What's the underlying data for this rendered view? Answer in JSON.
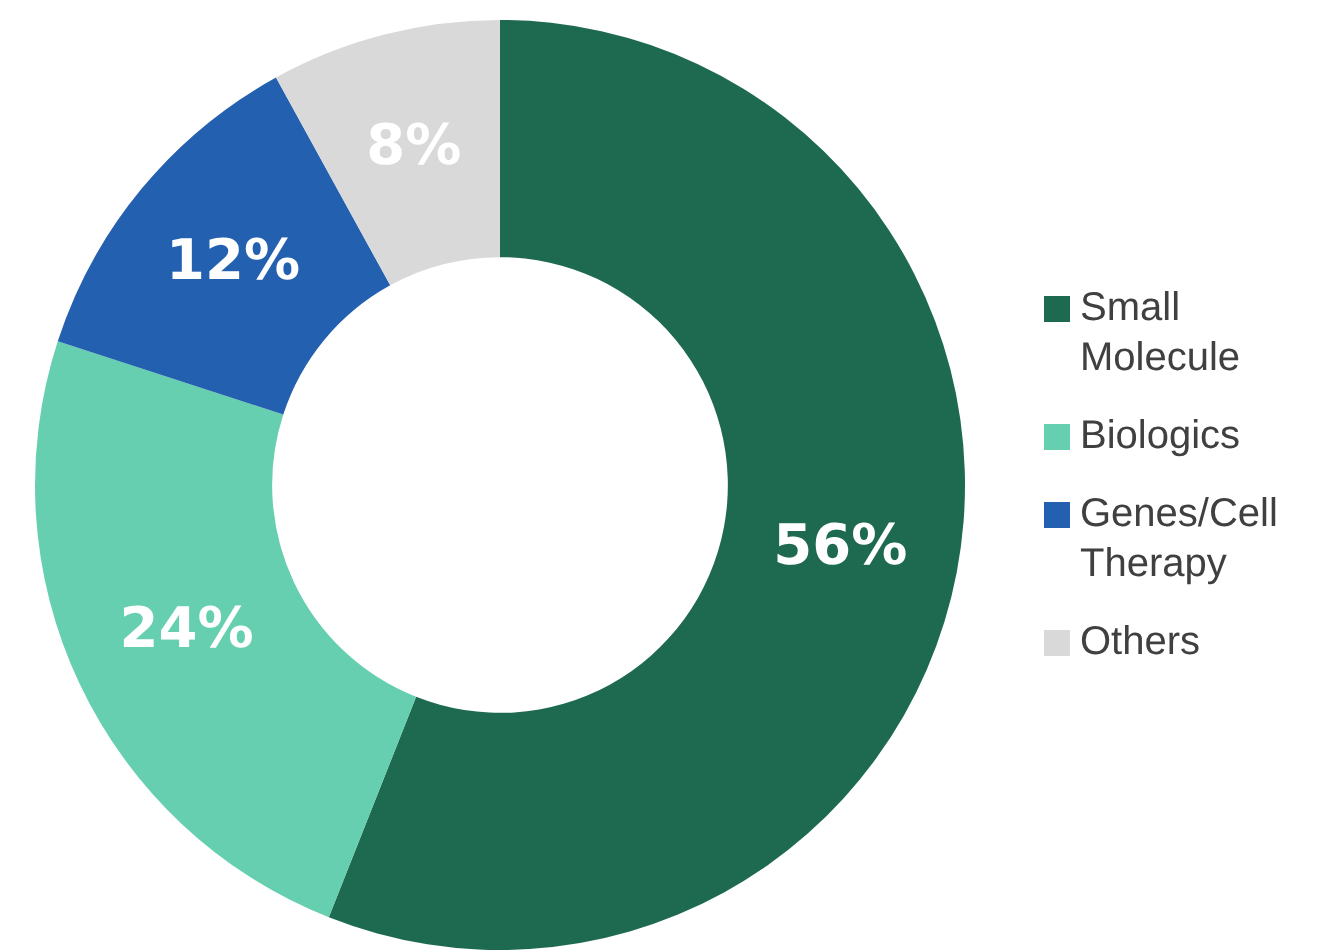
{
  "chart_data": {
    "type": "donut",
    "categories": [
      "Small Molecule",
      "Biologics",
      "Genes/Cell Therapy",
      "Others"
    ],
    "values": [
      56,
      24,
      12,
      8
    ],
    "colors": [
      "#1e6a50",
      "#66cfb0",
      "#2460b0",
      "#d9d9d9"
    ],
    "value_labels": [
      "56%",
      "24%",
      "12%",
      "8%"
    ],
    "legend": "right"
  }
}
